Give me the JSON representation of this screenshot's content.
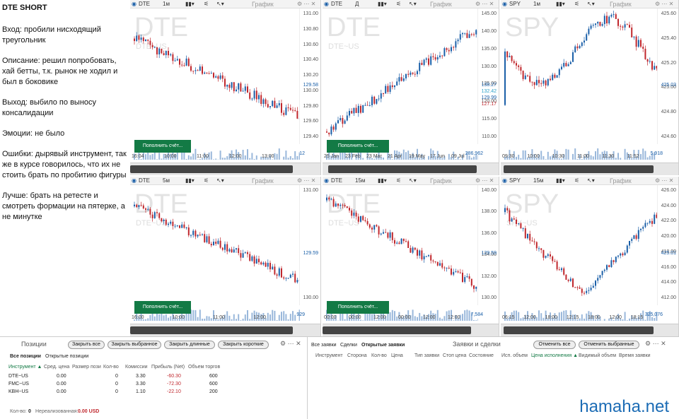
{
  "notes": {
    "title": "DTE SHORT",
    "lines": [
      "Вход: пробили нисходящий треугольник",
      "Описание: решил попробовать, хай бетты, т.к. рынок не ходил и был в боковике",
      "Выход: выбило по выносу консалидации",
      "Эмоции: не было",
      "Ошибки: дырявый инструмент, так же в курсе говорилось, что их не стоить брать по пробитию фигуры",
      "Лучше: брать на ретесте и смотреть формации на пятерке, а не минутке"
    ]
  },
  "panels": [
    {
      "symbol": "DTE",
      "tf": "1м",
      "mode": "График",
      "wm": "DTE",
      "sub": "DTE~US",
      "prices": [
        "131.00",
        "130.80",
        "130.60",
        "130.40",
        "130.20",
        "130.00",
        "129.80",
        "129.60",
        "129.40"
      ],
      "marks": [
        "129.58"
      ],
      "times": [
        "16:04",
        "10:00",
        "11:00",
        "12:00",
        "13:00"
      ],
      "vol": "12",
      "btn": "Пополнить счёт..."
    },
    {
      "symbol": "DTE",
      "tf": "Д",
      "mode": "График",
      "wm": "DTE",
      "sub": "DTE~US",
      "prices": [
        "145.00",
        "140.00",
        "135.00",
        "130.00",
        "125.00",
        "120.00",
        "115.00",
        "110.00"
      ],
      "marks": [
        "138.27",
        "132.42",
        "129.99",
        "127.17"
      ],
      "times": [
        "25 Jan",
        "23 Feb",
        "23 Mar",
        "21 Apr",
        "19 May",
        "17 Jun",
        "09 Jul"
      ],
      "vol": "286,962",
      "btn": "Пополнить счёт..."
    },
    {
      "symbol": "SPY",
      "tf": "1м",
      "mode": "График",
      "wm": "SPY",
      "sub": "",
      "prices": [
        "425.60",
        "425.40",
        "425.20",
        "425.00",
        "424.80",
        "424.60"
      ],
      "marks": [
        "425.03"
      ],
      "times": [
        "09:30",
        "10:00",
        "10:30",
        "11:00",
        "11:30",
        "11:52"
      ],
      "vol": "5,918",
      "btn": ""
    },
    {
      "symbol": "DTE",
      "tf": "5м",
      "mode": "График",
      "wm": "DTE",
      "sub": "DTE~US",
      "prices": [
        "131.00",
        "130.00"
      ],
      "marks": [
        "129.59"
      ],
      "times": [
        "16:00",
        "10:00",
        "11:00",
        "12:00"
      ],
      "vol": "929",
      "btn": "Пополнить счёт..."
    },
    {
      "symbol": "DTE",
      "tf": "15м",
      "mode": "График",
      "wm": "DTE",
      "sub": "DTE~US",
      "prices": [
        "140.00",
        "138.00",
        "136.00",
        "134.00",
        "132.00",
        "130.00"
      ],
      "marks": [
        "129.59"
      ],
      "times": [
        "00:00",
        "00:00",
        "12:00",
        "00:00",
        "12:00",
        "12:00"
      ],
      "vol": "7,584",
      "btn": "Пополнить счёт..."
    },
    {
      "symbol": "SPY",
      "tf": "15м",
      "mode": "График",
      "wm": "SPY",
      "sub": "SPY~US",
      "prices": [
        "426.00",
        "424.00",
        "422.00",
        "420.00",
        "418.00",
        "416.00",
        "414.00",
        "412.00"
      ],
      "marks": [
        "425.01"
      ],
      "times": [
        "06:15",
        "12:00",
        "18:00",
        "12:15",
        "18:00",
        "12:00",
        "18:15"
      ],
      "vol": "325,076",
      "btn": ""
    }
  ],
  "positions": {
    "title": "Позиции",
    "buttons": [
      "Закрыть все",
      "Закрыть выбранное",
      "Закрыть длинные",
      "Закрыть короткие"
    ],
    "tabs": [
      "Все позиции",
      "Открытые позиции"
    ],
    "headers": [
      "Инструмент ▲",
      "Сред. цена",
      "Размер пози",
      "Кол-во",
      "Комиссии",
      "Прибыль (Net)",
      "Объем торгов"
    ],
    "rows": [
      [
        "DTE~US",
        "0.00",
        "",
        "0",
        "3.30",
        "-60.30",
        "600"
      ],
      [
        "FMC~US",
        "0.00",
        "",
        "0",
        "3.30",
        "-72.30",
        "600"
      ],
      [
        "KBH~US",
        "0.00",
        "",
        "0",
        "1.10",
        "-22.10",
        "200"
      ]
    ],
    "footer_qty_label": "Кол-во:",
    "footer_qty": "0",
    "footer_unreal_label": "Нереализованная:",
    "footer_unreal": "0.00 USD"
  },
  "orders": {
    "title": "Заявки и сделки",
    "buttons": [
      "Отменить все",
      "Отменить выбранные"
    ],
    "tabs": [
      "Все заявки",
      "Сделки",
      "Открытые заявки"
    ],
    "headers": [
      "Инструмент",
      "Сторона",
      "Кол-во",
      "Цена",
      "Тип заявки",
      "Стоп цена",
      "Состояние",
      "Исп. объем",
      "Цена исполнения ▲",
      "Видимый объем",
      "Время заявки"
    ]
  },
  "watermark": "hamaha.net",
  "colors": {
    "up": "#1a5fa8",
    "down": "#c0272d",
    "green_btn": "#137a45"
  }
}
